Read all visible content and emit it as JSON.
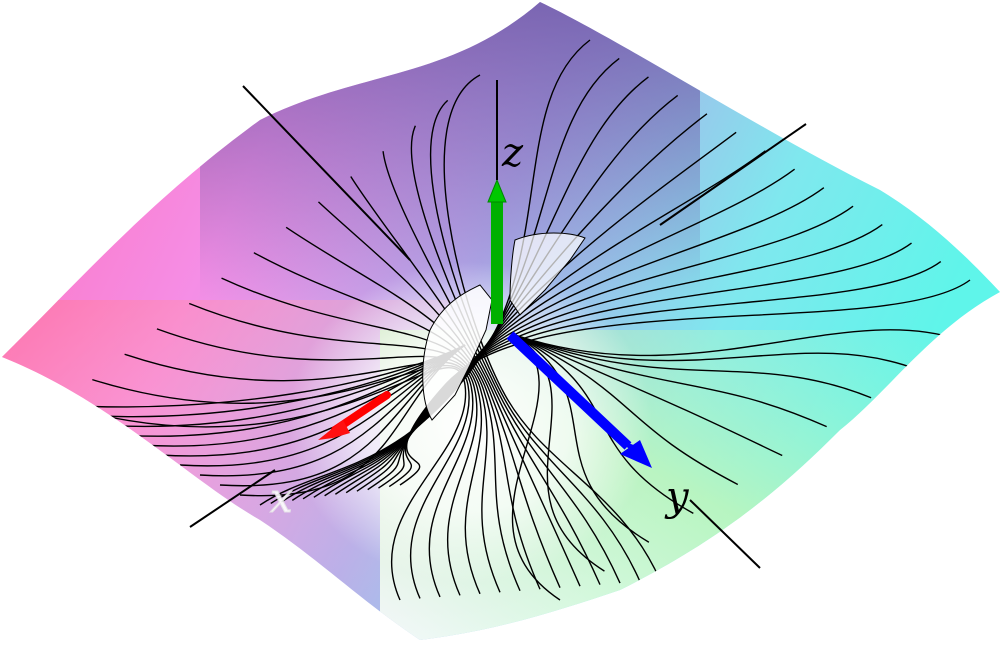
{
  "figure": {
    "kind": "3d-surface-with-contour-curves",
    "background": "#ffffff",
    "surface_colors": {
      "left": "#ff6fd0",
      "front": "#ff7a9a",
      "back": "#7f7fcf",
      "right": "#5ff5ea",
      "near_right": "#b8f5a8",
      "center": "#ffffff"
    },
    "curve_color": "#000000",
    "axes": {
      "x": {
        "label": "x",
        "color": "#ff0000"
      },
      "y": {
        "label": "y",
        "color": "#0000ff"
      },
      "z": {
        "label": "z",
        "color": "#00b000"
      }
    }
  }
}
